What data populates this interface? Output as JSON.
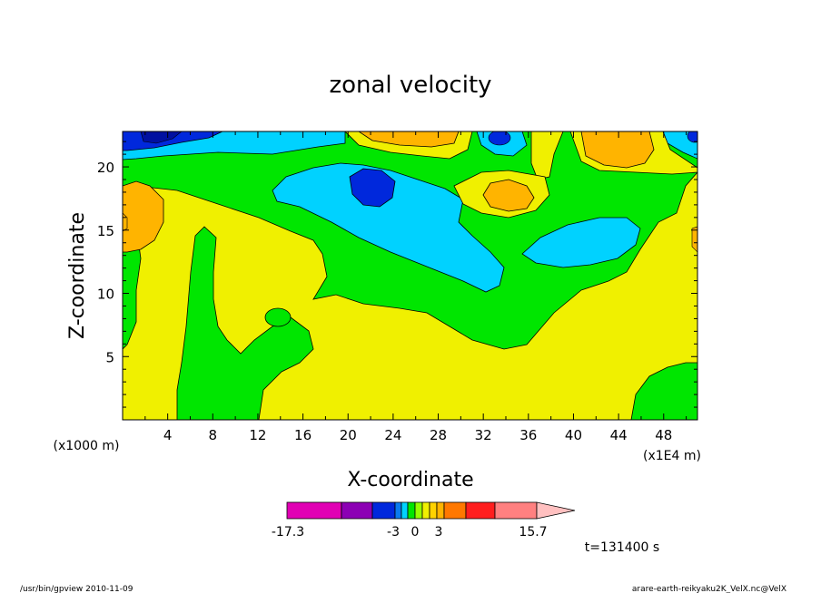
{
  "chart_data": {
    "type": "heatmap",
    "title": "zonal velocity",
    "xlabel": "X-coordinate",
    "ylabel": "Z-coordinate",
    "x_unit_note": "(x1E4 m)",
    "y_unit_note": "(x1000 m)",
    "xlim": [
      0,
      51
    ],
    "ylim": [
      0,
      22.8
    ],
    "x_ticks": [
      "4",
      "8",
      "12",
      "16",
      "20",
      "24",
      "28",
      "32",
      "36",
      "40",
      "44",
      "48"
    ],
    "y_ticks": [
      "5",
      "10",
      "15",
      "20"
    ],
    "x_tick_values": [
      4,
      8,
      12,
      16,
      20,
      24,
      28,
      32,
      36,
      40,
      44,
      48
    ],
    "y_tick_values": [
      5,
      10,
      15,
      20
    ],
    "colorbar": {
      "labels": [
        "-17.3",
        "-3",
        "0",
        "3",
        "15.7"
      ],
      "colors": [
        "#e100b4",
        "#8c00b4",
        "#0028dc",
        "#0a7af0",
        "#00d2ff",
        "#00e600",
        "#96ff00",
        "#f0f000",
        "#ffd200",
        "#ffb400",
        "#ff7800",
        "#ff1e1e",
        "#ff8080",
        "#ffc0c0"
      ]
    },
    "time_label": "t=131400 s",
    "regions": [
      {
        "level": "0 to 3 (yellow)",
        "color": "#f0f000",
        "extent": "background, lower half and right side"
      },
      {
        "level": "-3 to 0 (green)",
        "color": "#00e600",
        "extent": "central band, left column and lower-left plume"
      },
      {
        "level": "-6 to -3 (cyan)",
        "color": "#00d2ff",
        "extent": "upper-middle tongue x~14-34, z~10-21 and right patch x~37-46"
      },
      {
        "level": "< -9 (blue)",
        "color": "#0028dc",
        "extent": "cores near x~22,z~18.5 and top-left x~0-7,z~22"
      },
      {
        "level": "3 to 6 (orange)",
        "color": "#ffb400",
        "extent": "left edge x~0-3,z~13-19; x~31-35,z~17-19; top band x~20-30 and x~41-46"
      }
    ]
  },
  "footer": {
    "left": "/usr/bin/gpview  2010-11-09",
    "right": "arare-earth-reikyaku2K_VelX.nc@VelX"
  }
}
